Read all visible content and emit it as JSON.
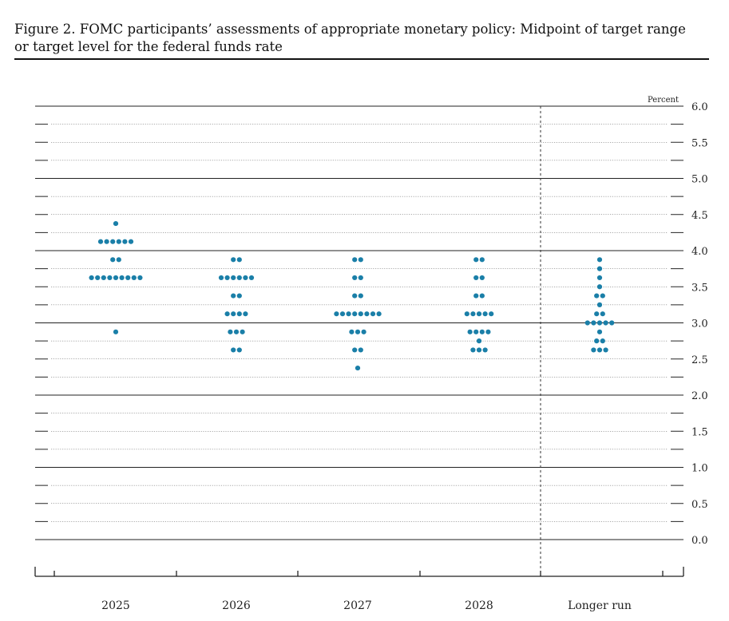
{
  "figure": {
    "title": "Figure 2. FOMC participants’ assessments of appropriate monetary policy: Midpoint of target range or target level for the federal funds rate"
  },
  "chart_data": {
    "type": "scatter",
    "subtype": "dot plot",
    "title": "Figure 2. FOMC participants’ assessments of appropriate monetary policy: Midpoint of target range or target level for the federal funds rate",
    "unit_label": "Percent",
    "ylim": [
      0.0,
      6.0
    ],
    "y_tick_labels": [
      "0.0",
      "0.5",
      "1.0",
      "1.5",
      "2.0",
      "2.5",
      "3.0",
      "3.5",
      "4.0",
      "4.5",
      "5.0",
      "5.5",
      "6.0"
    ],
    "y_ticks": [
      0.0,
      0.5,
      1.0,
      1.5,
      2.0,
      2.5,
      3.0,
      3.5,
      4.0,
      4.5,
      5.0,
      5.5,
      6.0
    ],
    "categories": [
      "2025",
      "2026",
      "2027",
      "2028",
      "Longer run"
    ],
    "dot_color": "#1a7fa8",
    "grid": "solid lines at whole percents, dotted lines at every 0.25",
    "separator": "dashed vertical line before Longer run",
    "dots": [
      {
        "category": "2025",
        "counts": [
          {
            "y": 4.375,
            "n": 1
          },
          {
            "y": 4.125,
            "n": 6
          },
          {
            "y": 3.875,
            "n": 2
          },
          {
            "y": 3.625,
            "n": 9
          },
          {
            "y": 2.875,
            "n": 1
          }
        ]
      },
      {
        "category": "2026",
        "counts": [
          {
            "y": 3.875,
            "n": 2
          },
          {
            "y": 3.625,
            "n": 6
          },
          {
            "y": 3.375,
            "n": 2
          },
          {
            "y": 3.125,
            "n": 4
          },
          {
            "y": 2.875,
            "n": 3
          },
          {
            "y": 2.625,
            "n": 2
          }
        ]
      },
      {
        "category": "2027",
        "counts": [
          {
            "y": 3.875,
            "n": 2
          },
          {
            "y": 3.625,
            "n": 2
          },
          {
            "y": 3.375,
            "n": 2
          },
          {
            "y": 3.125,
            "n": 8
          },
          {
            "y": 2.875,
            "n": 3
          },
          {
            "y": 2.625,
            "n": 2
          },
          {
            "y": 2.375,
            "n": 1
          }
        ]
      },
      {
        "category": "2028",
        "counts": [
          {
            "y": 3.875,
            "n": 2
          },
          {
            "y": 3.625,
            "n": 2
          },
          {
            "y": 3.375,
            "n": 2
          },
          {
            "y": 3.125,
            "n": 5
          },
          {
            "y": 2.875,
            "n": 4
          },
          {
            "y": 2.75,
            "n": 1
          },
          {
            "y": 2.625,
            "n": 3
          }
        ]
      },
      {
        "category": "Longer run",
        "counts": [
          {
            "y": 3.875,
            "n": 1
          },
          {
            "y": 3.75,
            "n": 1
          },
          {
            "y": 3.625,
            "n": 1
          },
          {
            "y": 3.5,
            "n": 1
          },
          {
            "y": 3.375,
            "n": 2
          },
          {
            "y": 3.25,
            "n": 1
          },
          {
            "y": 3.125,
            "n": 2
          },
          {
            "y": 3.0,
            "n": 5
          },
          {
            "y": 2.875,
            "n": 1
          },
          {
            "y": 2.75,
            "n": 2
          },
          {
            "y": 2.625,
            "n": 3
          }
        ]
      }
    ]
  }
}
